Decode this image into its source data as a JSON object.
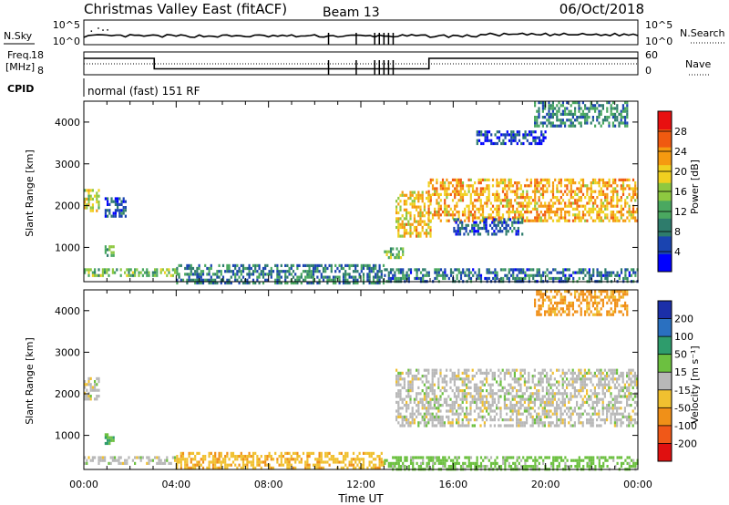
{
  "header": {
    "title": "Christmas Valley East (fitACF)",
    "beam": "Beam 13",
    "date": "06/Oct/2018"
  },
  "top_panels": {
    "nsky_label": "N.Sky",
    "nsearch_label": "N.Search",
    "noise_ticks_left": [
      "10^5",
      "10^0"
    ],
    "noise_ticks_right": [
      "10^5",
      "10^0"
    ],
    "freq_label": "Freq.",
    "freq_unit": "[MHz]",
    "freq_ticks": [
      "18",
      "8"
    ],
    "nave_label": "Nave",
    "nave_ticks": [
      "60",
      "0"
    ],
    "cpid_label": "CPID",
    "cpid_text": "normal (fast) 151 RF",
    "freq_steps_hours": [
      0,
      3.05,
      14.95,
      24
    ],
    "freq_values_mhz": [
      15.2,
      10.6,
      15.2
    ]
  },
  "chart_data": [
    {
      "type": "heatmap",
      "name": "power",
      "ylabel": "Slant Range [km]",
      "ylim": [
        180,
        4500
      ],
      "yticks": [
        "1000",
        "2000",
        "3000",
        "4000"
      ],
      "colorbar_label": "Power [dB]",
      "colorbar_ticks": [
        "4",
        "8",
        "12",
        "16",
        "20",
        "24",
        "28"
      ],
      "colorbar_range": [
        0,
        32
      ],
      "colors": [
        "#0000ff",
        "#1a44b0",
        "#2e7c6c",
        "#4aa860",
        "#8ec840",
        "#f0d020",
        "#f59a10",
        "#f05a10",
        "#e81010"
      ],
      "echo_regions": [
        {
          "t0": 0.0,
          "t1": 4.0,
          "r0": 330,
          "r1": 500,
          "p": 14
        },
        {
          "t0": 0.0,
          "t1": 0.65,
          "r0": 1850,
          "r1": 2400,
          "p": 18
        },
        {
          "t0": 0.9,
          "t1": 1.8,
          "r0": 1750,
          "r1": 2200,
          "p": 6
        },
        {
          "t0": 0.9,
          "t1": 1.3,
          "r0": 780,
          "r1": 1050,
          "p": 14
        },
        {
          "t0": 4.0,
          "t1": 13.0,
          "r0": 180,
          "r1": 600,
          "p": 9
        },
        {
          "t0": 13.0,
          "t1": 24.0,
          "r0": 180,
          "r1": 500,
          "p": 8
        },
        {
          "t0": 13.0,
          "t1": 13.8,
          "r0": 750,
          "r1": 1000,
          "p": 14
        },
        {
          "t0": 13.5,
          "t1": 15.0,
          "r0": 1250,
          "r1": 2350,
          "p": 20
        },
        {
          "t0": 14.9,
          "t1": 24.0,
          "r0": 1650,
          "r1": 2650,
          "p": 22
        },
        {
          "t0": 16.0,
          "t1": 19.0,
          "r0": 1350,
          "r1": 1700,
          "p": 7
        },
        {
          "t0": 19.5,
          "t1": 23.5,
          "r0": 3900,
          "r1": 4500,
          "p": 9
        },
        {
          "t0": 17.0,
          "t1": 20.0,
          "r0": 3500,
          "r1": 3800,
          "p": 5
        }
      ]
    },
    {
      "type": "heatmap",
      "name": "velocity",
      "ylabel": "Slant Range [km]",
      "ylim": [
        180,
        4500
      ],
      "yticks": [
        "1000",
        "2000",
        "3000",
        "4000"
      ],
      "colorbar_label": "Velocity [m s⁻¹]",
      "colorbar_ticks": [
        "200",
        "100",
        "50",
        "15",
        "-15",
        "-50",
        "-100",
        "-200"
      ],
      "colors": [
        "#1b2fa8",
        "#2a70c0",
        "#2e9c6c",
        "#6cc040",
        "#b8b8b8",
        "#f0c030",
        "#f09018",
        "#f05818",
        "#e01010"
      ],
      "echo_regions": [
        {
          "t0": 0.0,
          "t1": 4.0,
          "r0": 330,
          "r1": 500,
          "v": 0
        },
        {
          "t0": 0.0,
          "t1": 0.65,
          "r0": 1850,
          "r1": 2400,
          "v": 0
        },
        {
          "t0": 0.9,
          "t1": 1.3,
          "r0": 780,
          "r1": 1050,
          "v": 40
        },
        {
          "t0": 4.0,
          "t1": 13.0,
          "r0": 180,
          "r1": 600,
          "v": -40
        },
        {
          "t0": 13.0,
          "t1": 24.0,
          "r0": 180,
          "r1": 500,
          "v": 30
        },
        {
          "t0": 13.5,
          "t1": 24.0,
          "r0": 1250,
          "r1": 2600,
          "v": 0
        },
        {
          "t0": 19.5,
          "t1": 23.5,
          "r0": 3900,
          "r1": 4500,
          "v": -60
        }
      ]
    }
  ],
  "x_axis": {
    "label": "Time UT",
    "ticks": [
      "00:00",
      "04:00",
      "08:00",
      "12:00",
      "16:00",
      "20:00",
      "00:00"
    ],
    "range_hours": [
      0,
      24
    ]
  },
  "palette": {
    "background": "#ffffff",
    "axes": "#000000"
  }
}
